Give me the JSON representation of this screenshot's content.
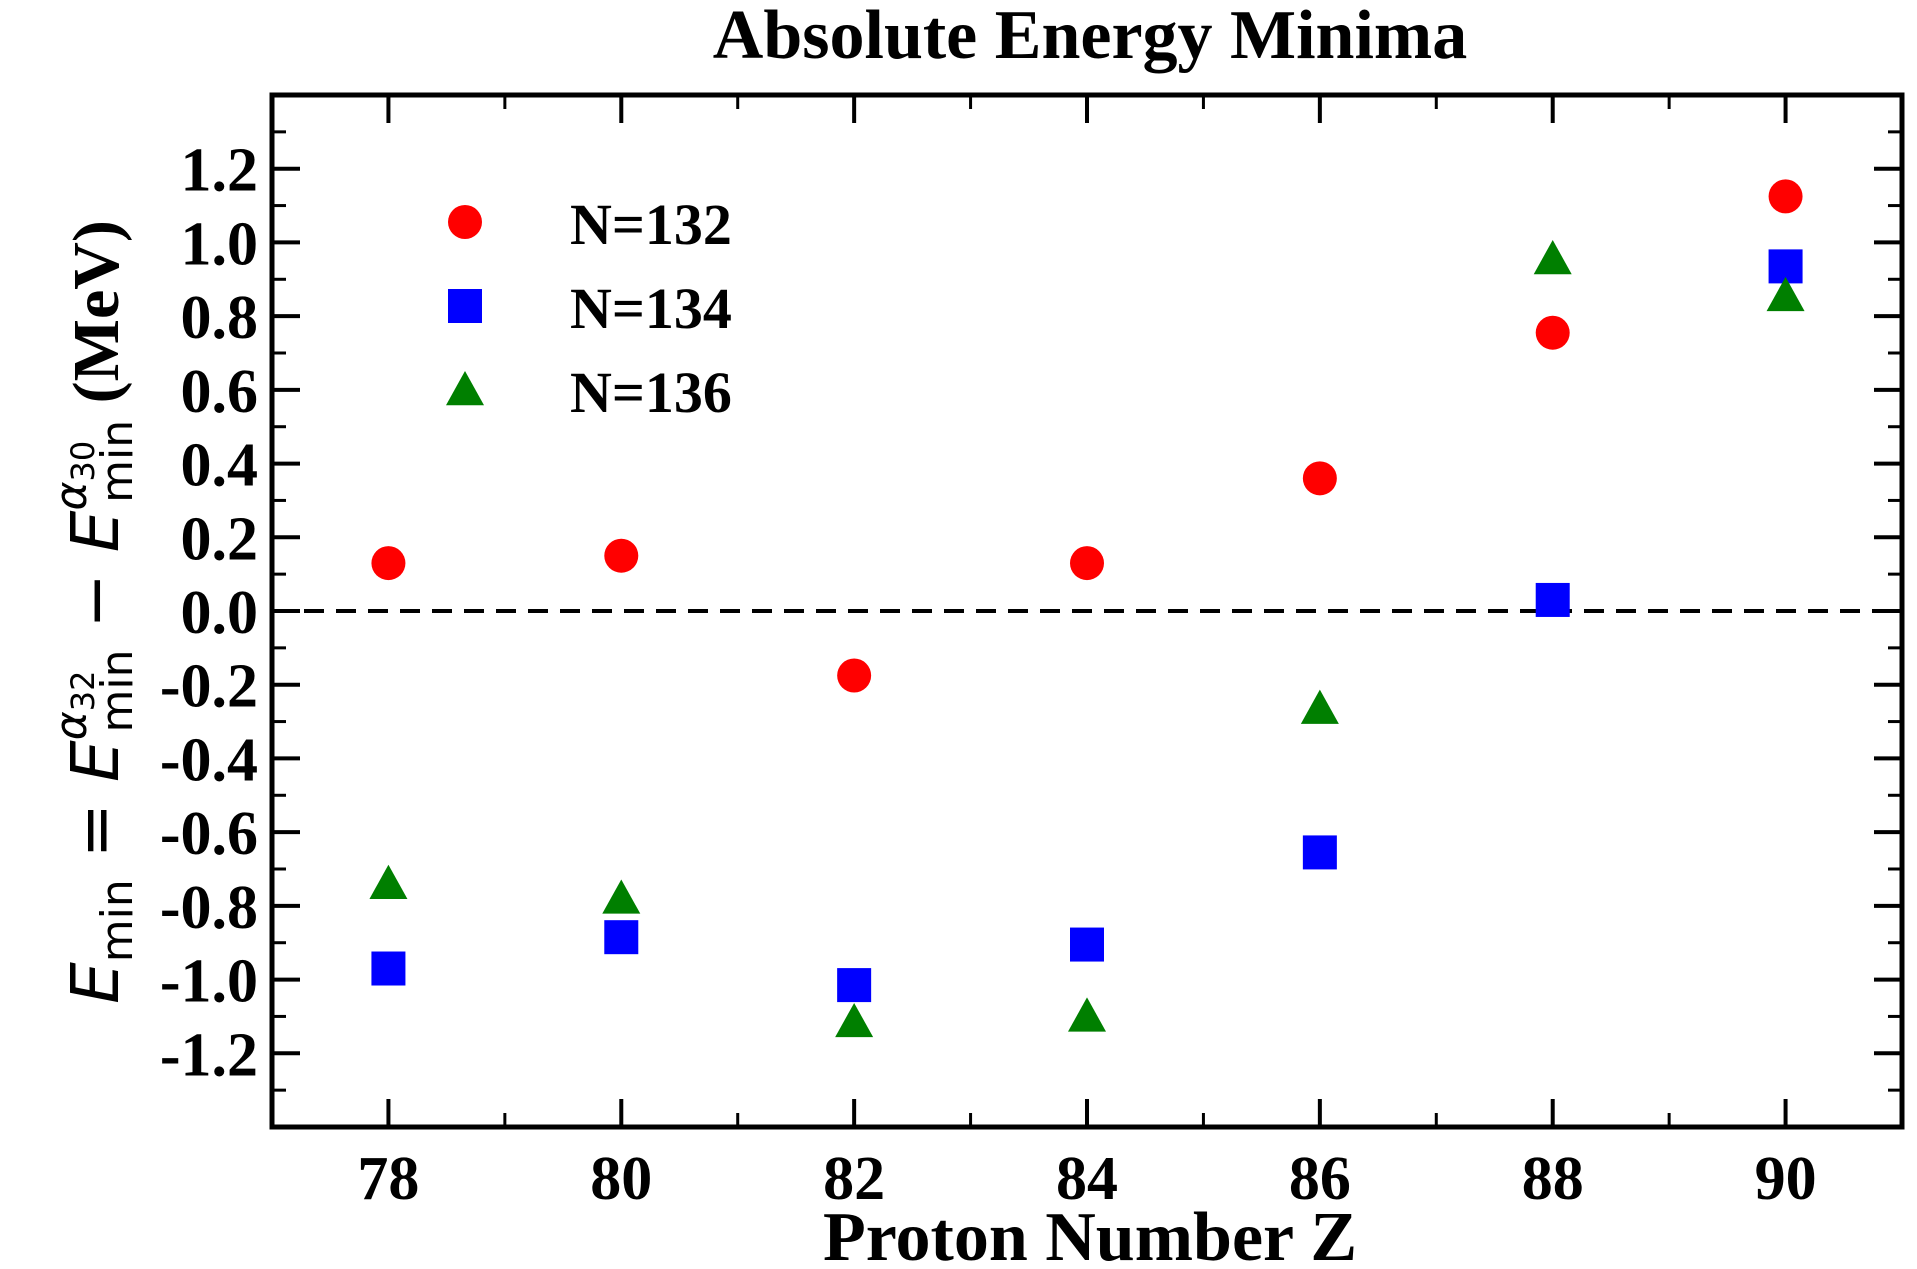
{
  "chart_data": {
    "type": "scatter",
    "title": "Absolute Energy Minima",
    "xlabel": "Proton Number Z",
    "ylabel": {
      "lhs": "E",
      "lhs_sub": "min",
      "eq": " = ",
      "t1": "E",
      "t1_sup_greek": "α",
      "t1_sup_sub": "32",
      "t1_sub": "min",
      "minus": " − ",
      "t2": "E",
      "t2_sup_greek": "α",
      "t2_sup_sub": "30",
      "t2_sub": "min",
      "unit": " (MeV)"
    },
    "xlim": [
      77,
      91
    ],
    "ylim": [
      -1.4,
      1.4
    ],
    "x_ticks": [
      "78",
      "80",
      "82",
      "84",
      "86",
      "88",
      "90"
    ],
    "y_ticks": [
      "1.2",
      "1.0",
      "0.8",
      "0.6",
      "0.4",
      "0.2",
      "0.0",
      "-0.2",
      "-0.4",
      "-0.6",
      "-0.8",
      "-1.0",
      "-1.2"
    ],
    "reference_line": {
      "y": 0.0,
      "style": "dashed"
    },
    "legend_position": "top-left",
    "grid": false,
    "series": [
      {
        "name": "N=132",
        "marker": "circle",
        "color": "#ff0000",
        "points": [
          [
            78,
            0.13
          ],
          [
            80,
            0.15
          ],
          [
            82,
            -0.175
          ],
          [
            84,
            0.13
          ],
          [
            86,
            0.36
          ],
          [
            88,
            0.755
          ],
          [
            90,
            1.125
          ]
        ]
      },
      {
        "name": "N=134",
        "marker": "square",
        "color": "#0000ff",
        "points": [
          [
            78,
            -0.97
          ],
          [
            80,
            -0.885
          ],
          [
            82,
            -1.015
          ],
          [
            84,
            -0.905
          ],
          [
            86,
            -0.655
          ],
          [
            88,
            0.03
          ],
          [
            90,
            0.935
          ]
        ]
      },
      {
        "name": "N=136",
        "marker": "triangle",
        "color": "#007f00",
        "points": [
          [
            78,
            -0.74
          ],
          [
            80,
            -0.78
          ],
          [
            82,
            -1.115
          ],
          [
            84,
            -1.1
          ],
          [
            86,
            -0.265
          ],
          [
            88,
            0.955
          ],
          [
            90,
            0.855
          ]
        ]
      }
    ]
  }
}
